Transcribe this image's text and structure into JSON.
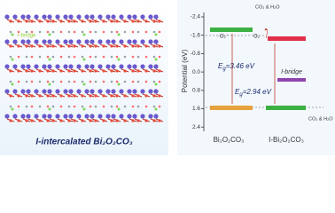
{
  "structure": {
    "caption": "I-intercalated Bi₂O₂CO₃",
    "callout": "I-bridge"
  },
  "diagram": {
    "axis_label": "Potential (eV)",
    "ticks": [
      "-2.4",
      "-1.6",
      "-0.8",
      "0.0",
      "0.8",
      "1.6",
      "2.4"
    ],
    "o2": "O₂",
    "superoxide": "·O₂⁻",
    "products_top": "CO₂ & H₂O",
    "products_bottom": "CO₂ & H₂O",
    "gap1": {
      "symbol": "E",
      "sub": "g",
      "text": "=3.46 eV"
    },
    "gap2": {
      "symbol": "E",
      "sub": "g",
      "text": "=2.94 eV"
    },
    "bridge": "I-bridge",
    "sample1": "Bi₂O₂CO₃",
    "sample2": "I-Bi₂O₂CO₃"
  }
}
